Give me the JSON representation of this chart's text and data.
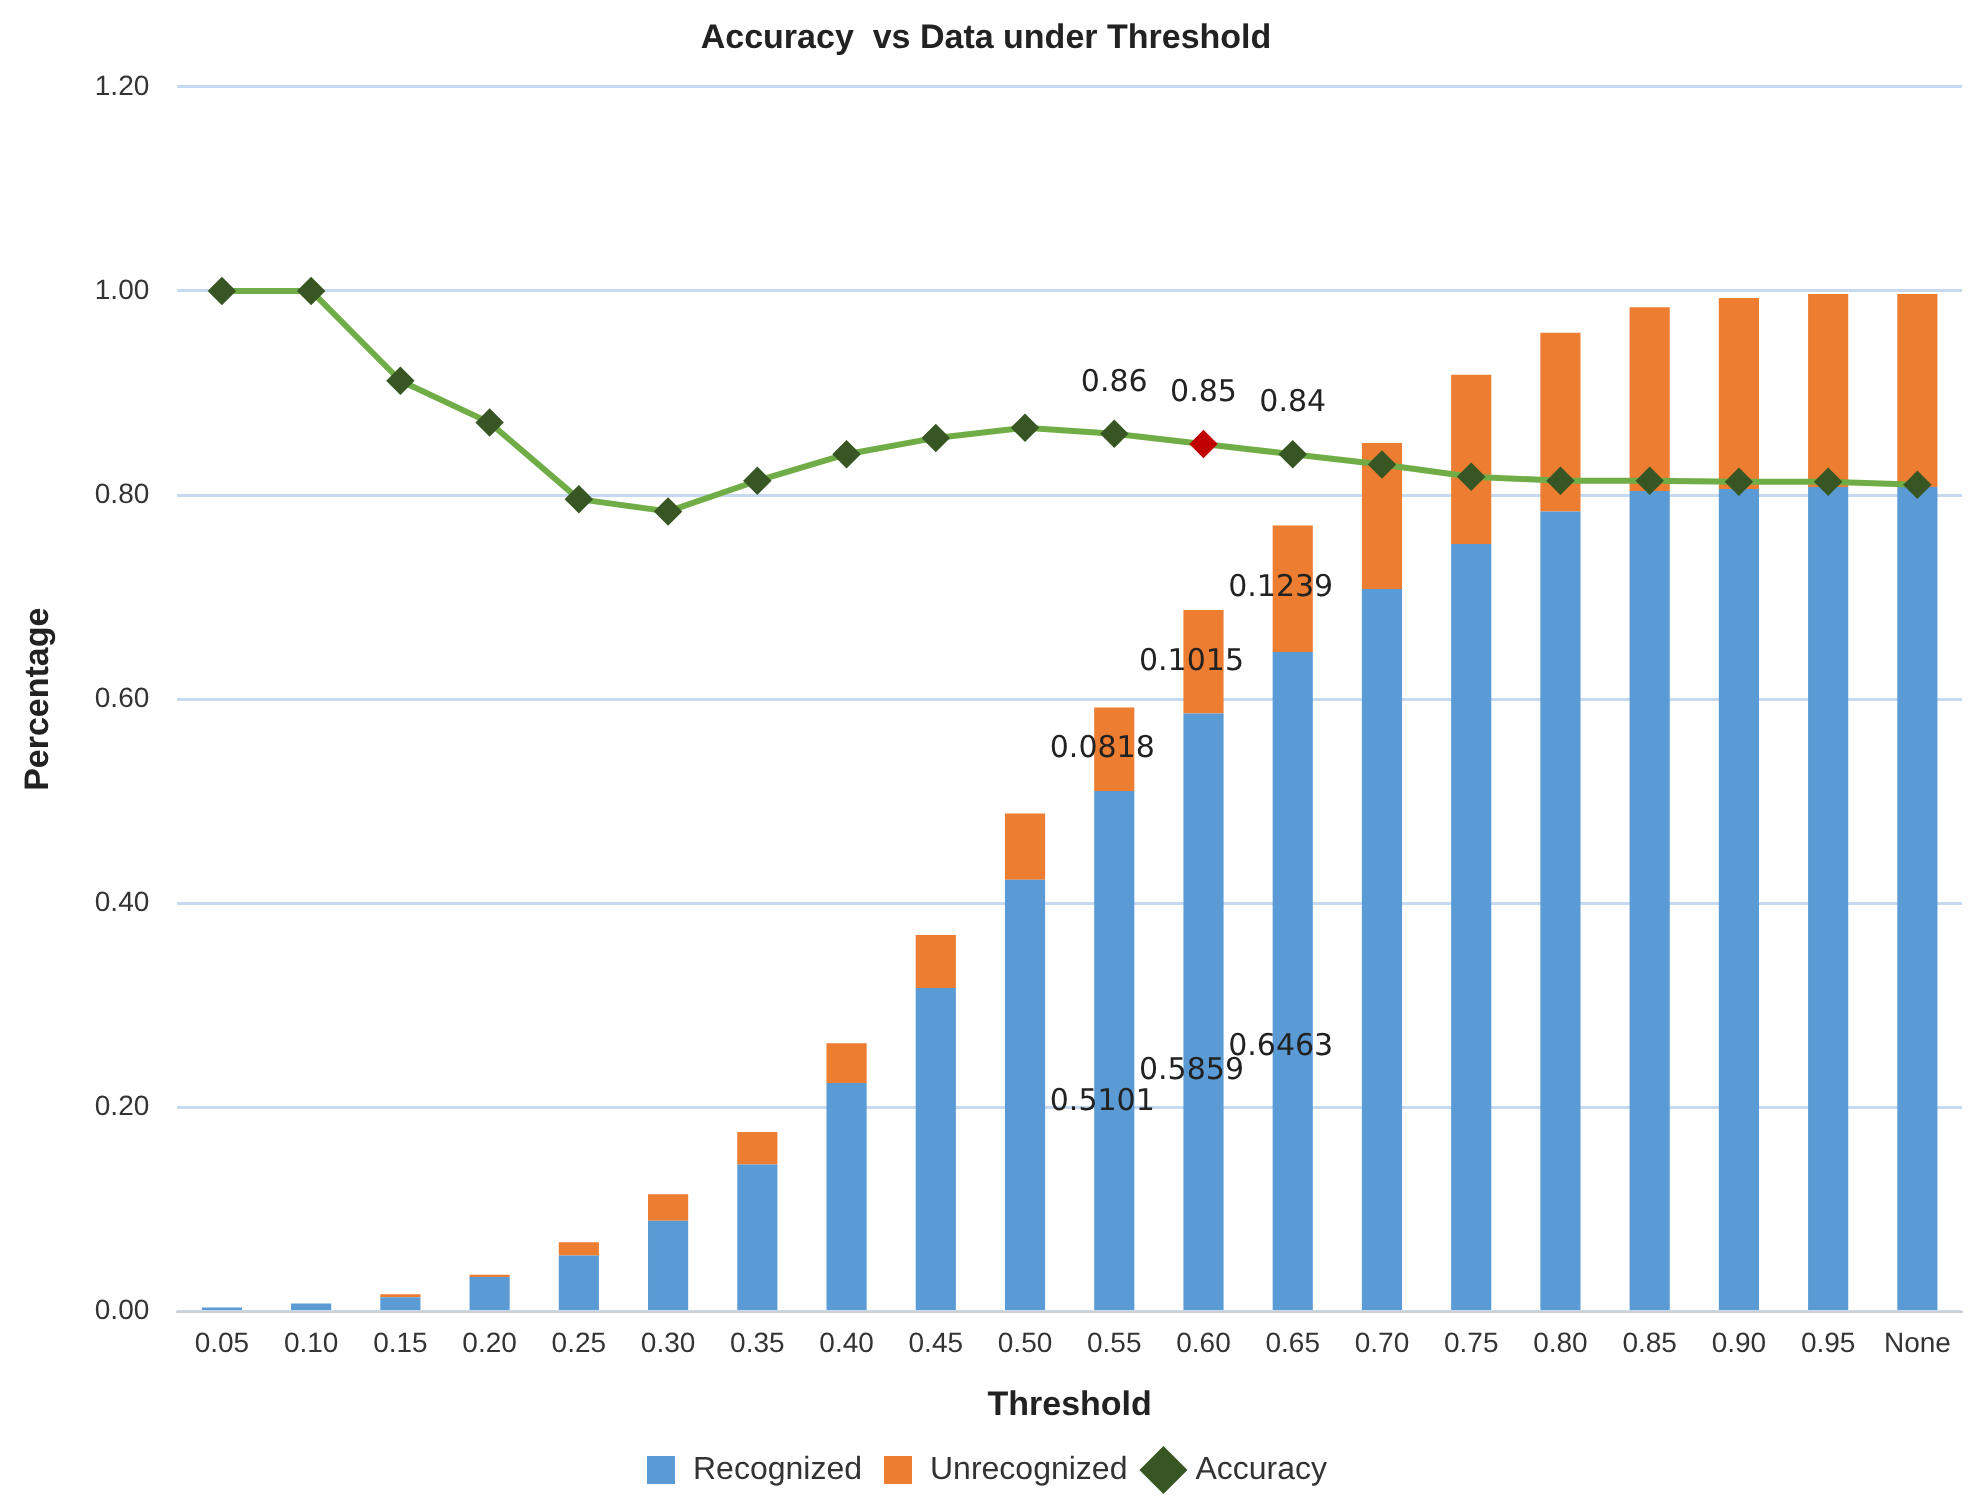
{
  "chart_data": {
    "type": "bar",
    "title": "Accuracy  vs Data under Threshold",
    "xlabel": "Threshold",
    "ylabel": "Percentage",
    "categories": [
      "0.05",
      "0.10",
      "0.15",
      "0.20",
      "0.25",
      "0.30",
      "0.35",
      "0.40",
      "0.45",
      "0.50",
      "0.55",
      "0.60",
      "0.65",
      "0.70",
      "0.75",
      "0.80",
      "0.85",
      "0.90",
      "0.95",
      "None"
    ],
    "stacked": true,
    "series": [
      {
        "name": "Recognized",
        "color": "#5b9bd5",
        "values": [
          0.004,
          0.008,
          0.014,
          0.034,
          0.055,
          0.089,
          0.144,
          0.224,
          0.317,
          0.423,
          0.5101,
          0.5859,
          0.6463,
          0.708,
          0.752,
          0.784,
          0.804,
          0.806,
          0.808,
          0.808
        ],
        "value_labels": [
          null,
          null,
          null,
          null,
          null,
          null,
          null,
          null,
          null,
          null,
          "0.5101",
          "0.5859",
          "0.6463",
          null,
          null,
          null,
          null,
          null,
          null,
          null
        ]
      },
      {
        "name": "Unrecognized",
        "color": "#ed7d31",
        "values": [
          0.0,
          0.0,
          0.003,
          0.002,
          0.013,
          0.026,
          0.032,
          0.039,
          0.052,
          0.065,
          0.0818,
          0.1015,
          0.1239,
          0.143,
          0.166,
          0.175,
          0.18,
          0.187,
          0.189,
          0.189
        ],
        "value_labels": [
          null,
          null,
          null,
          null,
          null,
          null,
          null,
          null,
          null,
          null,
          "0.0818",
          "0.1015",
          "0.1239",
          null,
          null,
          null,
          null,
          null,
          null,
          null
        ]
      },
      {
        "name": "Accuracy",
        "type": "line",
        "color": "#70ad47",
        "colors": [
          "#375623",
          "#375623",
          "#375623",
          "#375623",
          "#375623",
          "#375623",
          "#375623",
          "#375623",
          "#375623",
          "#375623",
          "#375623",
          "#c00000",
          "#375623",
          "#375623",
          "#375623",
          "#375623",
          "#375623",
          "#375623",
          "#375623",
          "#375623"
        ],
        "values": [
          1.0,
          1.0,
          0.912,
          0.871,
          0.796,
          0.784,
          0.814,
          0.84,
          0.856,
          0.866,
          0.86,
          0.85,
          0.84,
          0.83,
          0.818,
          0.814,
          0.814,
          0.813,
          0.813,
          0.81
        ],
        "value_labels": [
          null,
          null,
          null,
          null,
          null,
          null,
          null,
          null,
          null,
          null,
          "0.86",
          "0.85",
          "0.84",
          null,
          null,
          null,
          null,
          null,
          null,
          null
        ]
      }
    ],
    "ylim": [
      0,
      1.2
    ],
    "yticks": [
      {
        "value": 0,
        "label": "0.00"
      },
      {
        "value": 0.2,
        "label": "0.20"
      },
      {
        "value": 0.4,
        "label": "0.40"
      },
      {
        "value": 0.6,
        "label": "0.60"
      },
      {
        "value": 0.8,
        "label": "0.80"
      },
      {
        "value": 1.0,
        "label": "1.00"
      },
      {
        "value": 1.2,
        "label": "1.20"
      }
    ],
    "grid": "y",
    "legend": "bottom",
    "marker": "diamond",
    "line_style": "solid"
  }
}
